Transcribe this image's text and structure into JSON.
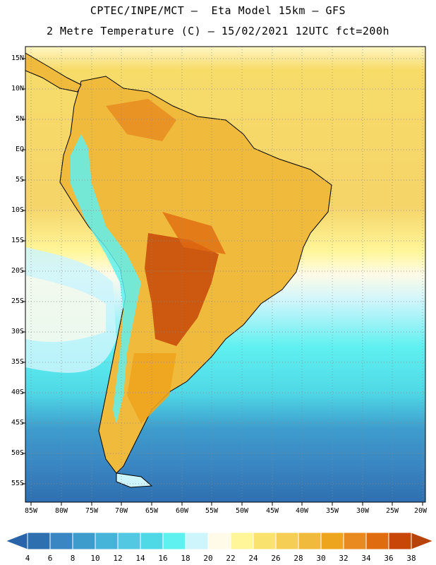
{
  "header": {
    "line1": "CPTEC/INPE/MCT —  Eta Model 15km — GFS",
    "line2": "2 Metre Temperature (C) — 15/02/2021 12UTC fct=200h"
  },
  "map": {
    "lat_labels": [
      "15N",
      "10N",
      "5N",
      "EQ",
      "5S",
      "10S",
      "15S",
      "20S",
      "25S",
      "30S",
      "35S",
      "40S",
      "45S",
      "50S",
      "55S"
    ],
    "lon_labels": [
      "85W",
      "80W",
      "75W",
      "70W",
      "65W",
      "60W",
      "55W",
      "50W",
      "45W",
      "40W",
      "35W",
      "30W",
      "25W",
      "20W"
    ]
  },
  "colorbar": {
    "labels": [
      "4",
      "6",
      "8",
      "10",
      "12",
      "14",
      "16",
      "18",
      "20",
      "22",
      "24",
      "26",
      "28",
      "30",
      "32",
      "34",
      "36",
      "38"
    ],
    "colors": [
      "#2e6fb0",
      "#3a86c2",
      "#3e9ccd",
      "#45b4d8",
      "#52c8e2",
      "#4fd8e6",
      "#5ff0f0",
      "#cdf5fb",
      "#fffbe8",
      "#fff69a",
      "#f9e36e",
      "#f5cf55",
      "#f0bb3c",
      "#eea51e",
      "#e88a1f",
      "#e06c10",
      "#c74608"
    ],
    "low_color": "#2a64a8",
    "high_color": "#b8430a"
  }
}
